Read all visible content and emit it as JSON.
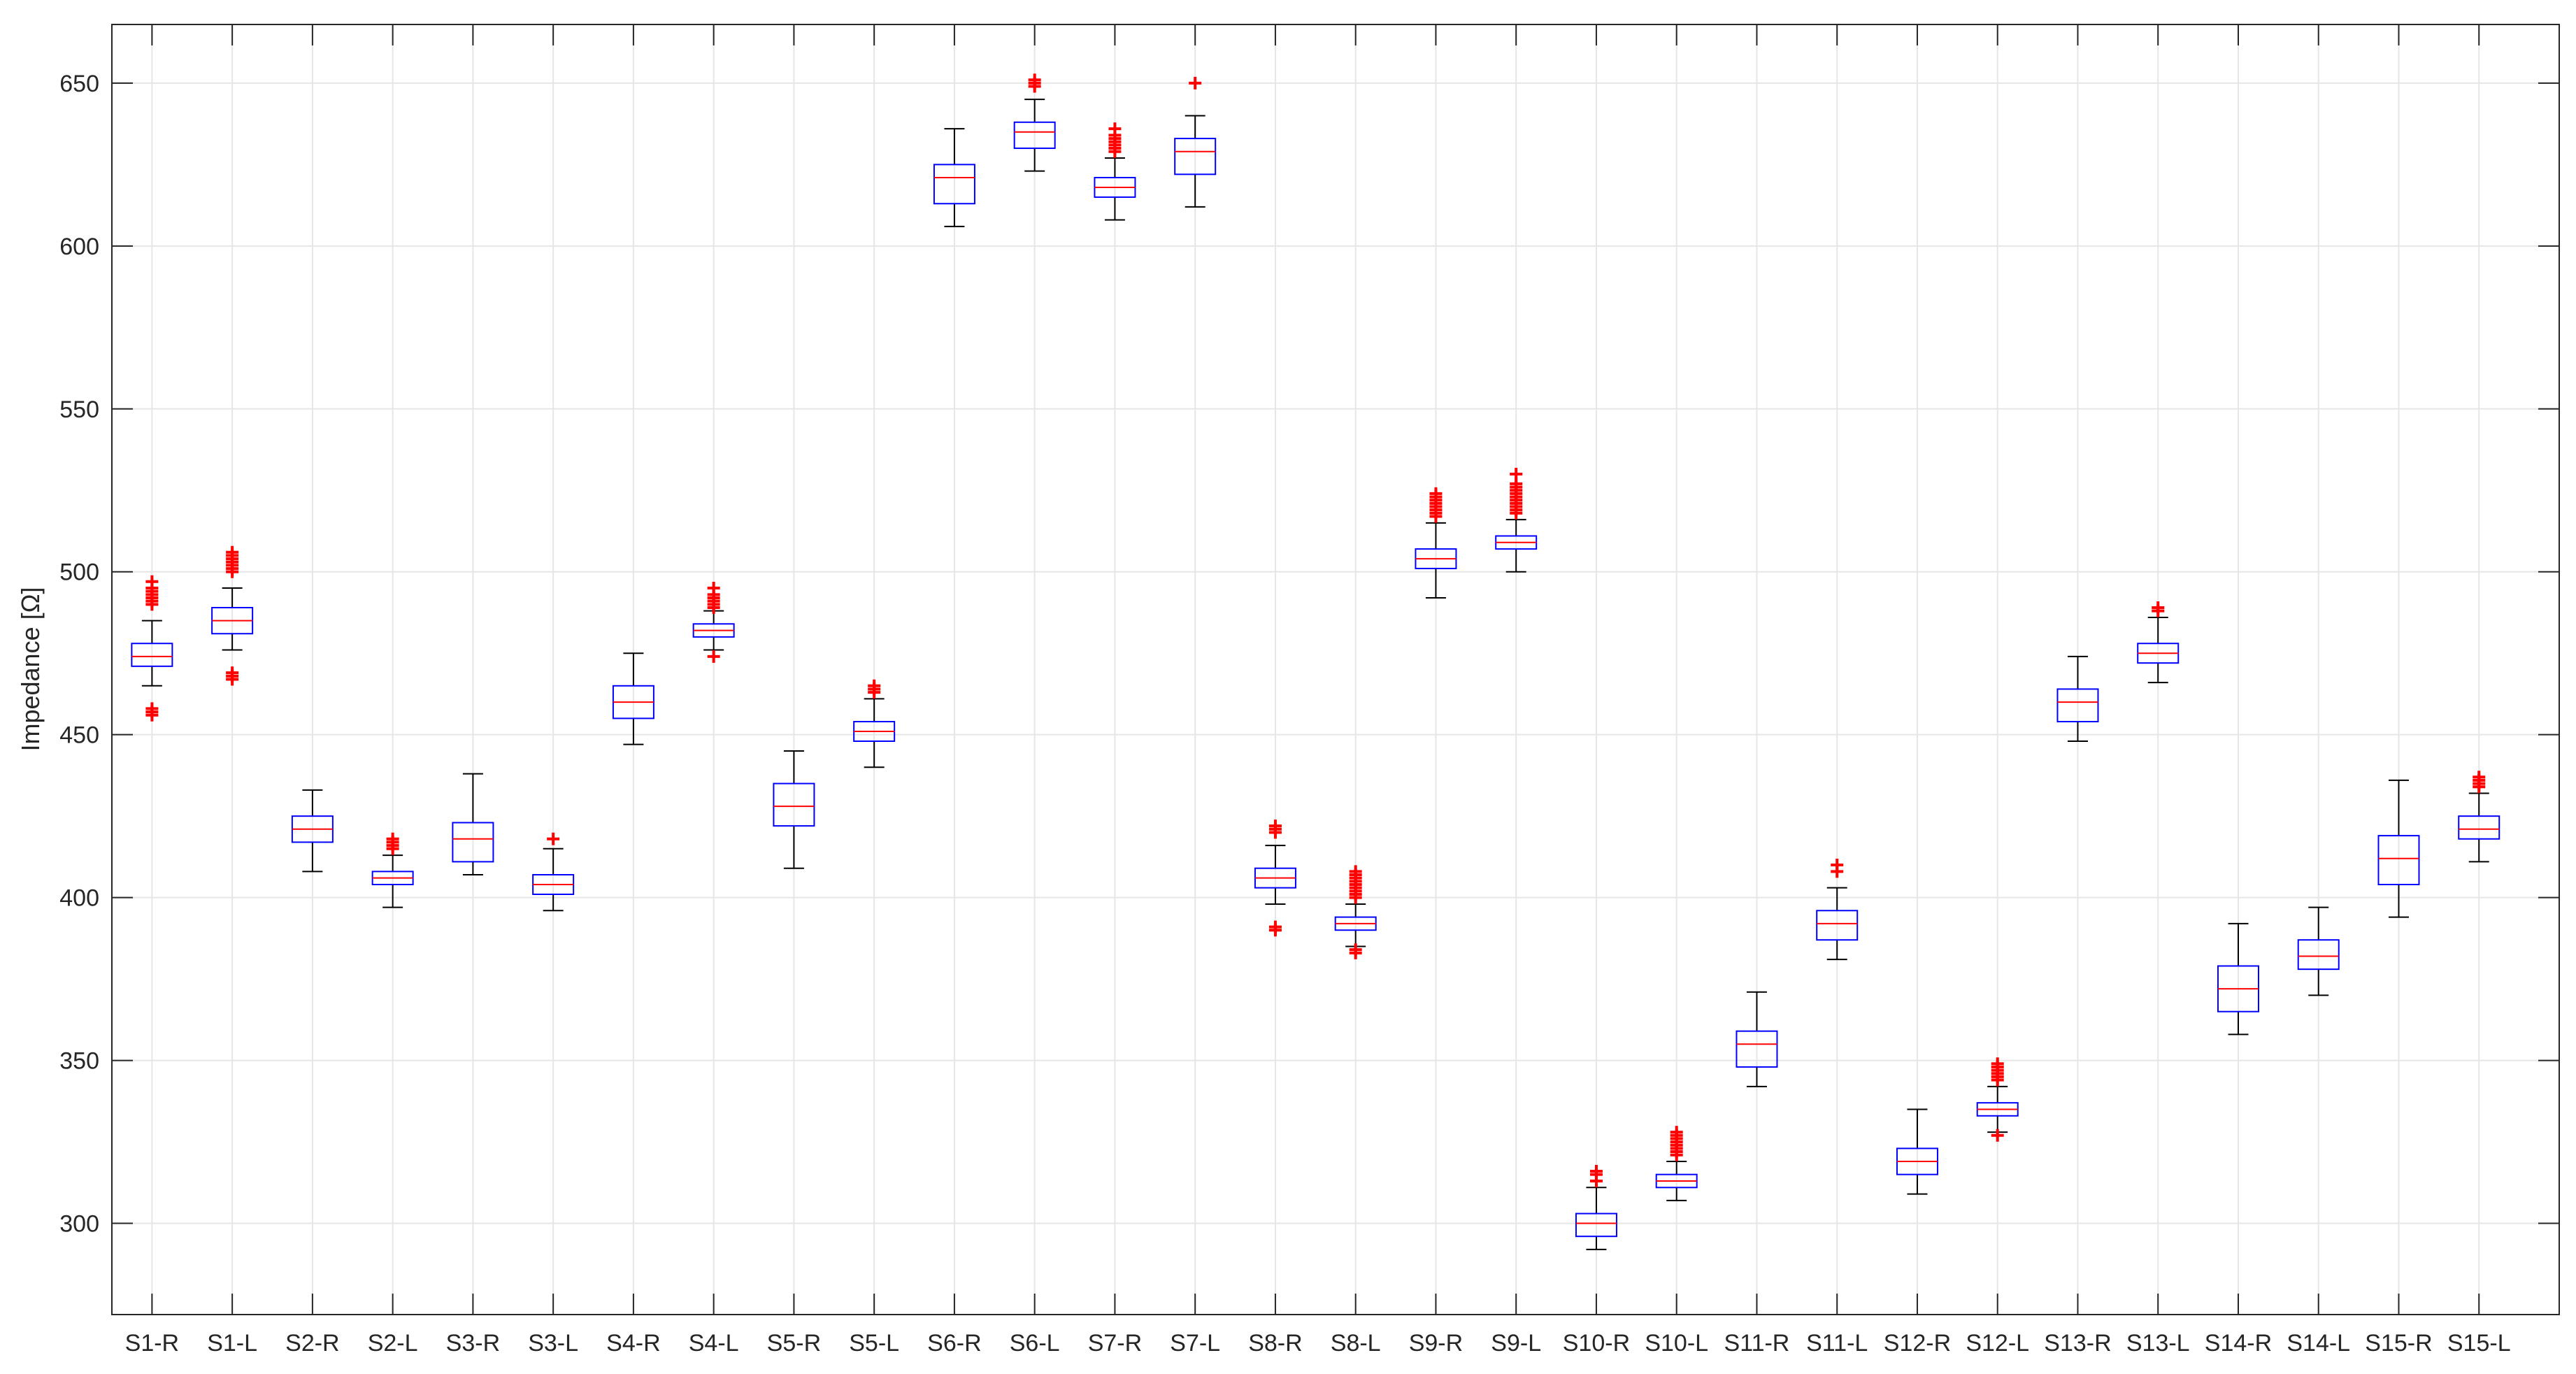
{
  "chart_data": {
    "type": "box",
    "title": "",
    "xlabel": "",
    "ylabel": "Impedance [Ω]",
    "ylim": [
      272,
      668
    ],
    "yticks": [
      300,
      350,
      400,
      450,
      500,
      550,
      600,
      650
    ],
    "grid": true,
    "colors": {
      "box": "#0000ff",
      "median": "#ff0000",
      "whisker": "#000000",
      "outlier": "#ff0000",
      "grid": "#e6e6e6",
      "axis": "#262626"
    },
    "categories": [
      "S1-R",
      "S1-L",
      "S2-R",
      "S2-L",
      "S3-R",
      "S3-L",
      "S4-R",
      "S4-L",
      "S5-R",
      "S5-L",
      "S6-R",
      "S6-L",
      "S7-R",
      "S7-L",
      "S8-R",
      "S8-L",
      "S9-R",
      "S9-L",
      "S10-R",
      "S10-L",
      "S11-R",
      "S11-L",
      "S12-R",
      "S12-L",
      "S13-R",
      "S13-L",
      "S14-R",
      "S14-L",
      "S15-R",
      "S15-L"
    ],
    "boxes": [
      {
        "min": 465,
        "q1": 471,
        "median": 474,
        "q3": 478,
        "max": 485,
        "outliers": [
          456,
          457,
          458,
          490,
          491,
          492,
          493,
          494,
          495,
          497
        ]
      },
      {
        "min": 476,
        "q1": 481,
        "median": 485,
        "q3": 489,
        "max": 495,
        "outliers": [
          467,
          468,
          469,
          500,
          501,
          502,
          503,
          504,
          505,
          506
        ]
      },
      {
        "min": 408,
        "q1": 417,
        "median": 421,
        "q3": 425,
        "max": 433,
        "outliers": []
      },
      {
        "min": 397,
        "q1": 404,
        "median": 406,
        "q3": 408,
        "max": 413,
        "outliers": [
          415,
          416,
          417,
          418
        ]
      },
      {
        "min": 407,
        "q1": 411,
        "median": 418,
        "q3": 423,
        "max": 438,
        "outliers": []
      },
      {
        "min": 396,
        "q1": 401,
        "median": 404,
        "q3": 407,
        "max": 415,
        "outliers": [
          418
        ]
      },
      {
        "min": 447,
        "q1": 455,
        "median": 460,
        "q3": 465,
        "max": 475,
        "outliers": []
      },
      {
        "min": 476,
        "q1": 480,
        "median": 482,
        "q3": 484,
        "max": 488,
        "outliers": [
          474,
          489,
          490,
          491,
          492,
          493,
          495
        ]
      },
      {
        "min": 409,
        "q1": 422,
        "median": 428,
        "q3": 435,
        "max": 445,
        "outliers": []
      },
      {
        "min": 440,
        "q1": 448,
        "median": 451,
        "q3": 454,
        "max": 461,
        "outliers": [
          463,
          464,
          465
        ]
      },
      {
        "min": 606,
        "q1": 613,
        "median": 621,
        "q3": 625,
        "max": 636,
        "outliers": []
      },
      {
        "min": 623,
        "q1": 630,
        "median": 635,
        "q3": 638,
        "max": 645,
        "outliers": [
          649,
          650,
          651
        ]
      },
      {
        "min": 608,
        "q1": 615,
        "median": 618,
        "q3": 621,
        "max": 627,
        "outliers": [
          629,
          630,
          631,
          632,
          633,
          634,
          636
        ]
      },
      {
        "min": 612,
        "q1": 622,
        "median": 629,
        "q3": 633,
        "max": 640,
        "outliers": [
          650
        ]
      },
      {
        "min": 398,
        "q1": 403,
        "median": 406,
        "q3": 409,
        "max": 416,
        "outliers": [
          390,
          391,
          420,
          421,
          422
        ]
      },
      {
        "min": 385,
        "q1": 390,
        "median": 392,
        "q3": 394,
        "max": 398,
        "outliers": [
          383,
          384,
          400,
          401,
          402,
          403,
          404,
          405,
          406,
          407,
          408
        ]
      },
      {
        "min": 492,
        "q1": 501,
        "median": 504,
        "q3": 507,
        "max": 515,
        "outliers": [
          517,
          518,
          519,
          520,
          521,
          522,
          523,
          524
        ]
      },
      {
        "min": 500,
        "q1": 507,
        "median": 509,
        "q3": 511,
        "max": 516,
        "outliers": [
          518,
          519,
          520,
          521,
          522,
          523,
          524,
          525,
          526,
          527,
          530
        ]
      },
      {
        "min": 292,
        "q1": 296,
        "median": 300,
        "q3": 303,
        "max": 311,
        "outliers": [
          313,
          315,
          316
        ]
      },
      {
        "min": 307,
        "q1": 311,
        "median": 313,
        "q3": 315,
        "max": 319,
        "outliers": [
          321,
          322,
          323,
          324,
          325,
          326,
          327,
          328
        ]
      },
      {
        "min": 342,
        "q1": 348,
        "median": 355,
        "q3": 359,
        "max": 371,
        "outliers": []
      },
      {
        "min": 381,
        "q1": 387,
        "median": 392,
        "q3": 396,
        "max": 403,
        "outliers": [
          408,
          410
        ]
      },
      {
        "min": 309,
        "q1": 315,
        "median": 319,
        "q3": 323,
        "max": 335,
        "outliers": []
      },
      {
        "min": 328,
        "q1": 333,
        "median": 335,
        "q3": 337,
        "max": 342,
        "outliers": [
          327,
          344,
          345,
          346,
          347,
          348,
          349
        ]
      },
      {
        "min": 448,
        "q1": 454,
        "median": 460,
        "q3": 464,
        "max": 474,
        "outliers": []
      },
      {
        "min": 466,
        "q1": 472,
        "median": 475,
        "q3": 478,
        "max": 486,
        "outliers": [
          488,
          489
        ]
      },
      {
        "min": 358,
        "q1": 365,
        "median": 372,
        "q3": 379,
        "max": 392,
        "outliers": []
      },
      {
        "min": 370,
        "q1": 378,
        "median": 382,
        "q3": 387,
        "max": 397,
        "outliers": []
      },
      {
        "min": 394,
        "q1": 404,
        "median": 412,
        "q3": 419,
        "max": 436,
        "outliers": []
      },
      {
        "min": 411,
        "q1": 418,
        "median": 421,
        "q3": 425,
        "max": 432,
        "outliers": [
          434,
          435,
          436,
          437
        ]
      }
    ]
  }
}
